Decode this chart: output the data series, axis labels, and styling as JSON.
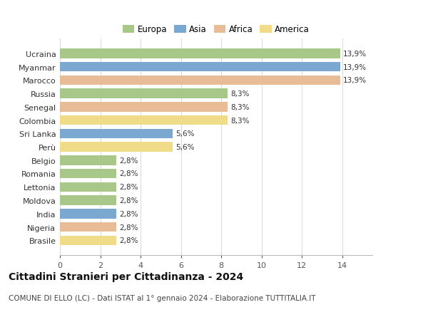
{
  "categories": [
    "Brasile",
    "Nigeria",
    "India",
    "Moldova",
    "Lettonia",
    "Romania",
    "Belgio",
    "Perù",
    "Sri Lanka",
    "Colombia",
    "Senegal",
    "Russia",
    "Marocco",
    "Myanmar",
    "Ucraina"
  ],
  "values": [
    2.8,
    2.8,
    2.8,
    2.8,
    2.8,
    2.8,
    2.8,
    5.6,
    5.6,
    8.3,
    8.3,
    8.3,
    13.9,
    13.9,
    13.9
  ],
  "continents": [
    "America",
    "Africa",
    "Asia",
    "Europa",
    "Europa",
    "Europa",
    "Europa",
    "America",
    "Asia",
    "America",
    "Africa",
    "Europa",
    "Africa",
    "Asia",
    "Europa"
  ],
  "colors": {
    "Europa": "#a8c88a",
    "Asia": "#7ba8d0",
    "Africa": "#e8bc96",
    "America": "#f0dc88"
  },
  "labels": [
    "2,8%",
    "2,8%",
    "2,8%",
    "2,8%",
    "2,8%",
    "2,8%",
    "2,8%",
    "5,6%",
    "5,6%",
    "8,3%",
    "8,3%",
    "8,3%",
    "13,9%",
    "13,9%",
    "13,9%"
  ],
  "xlim": [
    0,
    15.5
  ],
  "xticks": [
    0,
    2,
    4,
    6,
    8,
    10,
    12,
    14
  ],
  "title": "Cittadini Stranieri per Cittadinanza - 2024",
  "subtitle": "COMUNE DI ELLO (LC) - Dati ISTAT al 1° gennaio 2024 - Elaborazione TUTTITALIA.IT",
  "legend_order": [
    "Europa",
    "Asia",
    "Africa",
    "America"
  ],
  "background_color": "#ffffff",
  "grid_color": "#d8d8d8",
  "bar_height": 0.72,
  "label_fontsize": 7.5,
  "tick_fontsize": 8,
  "ytick_fontsize": 8,
  "title_fontsize": 10,
  "subtitle_fontsize": 7.5,
  "legend_fontsize": 8.5
}
